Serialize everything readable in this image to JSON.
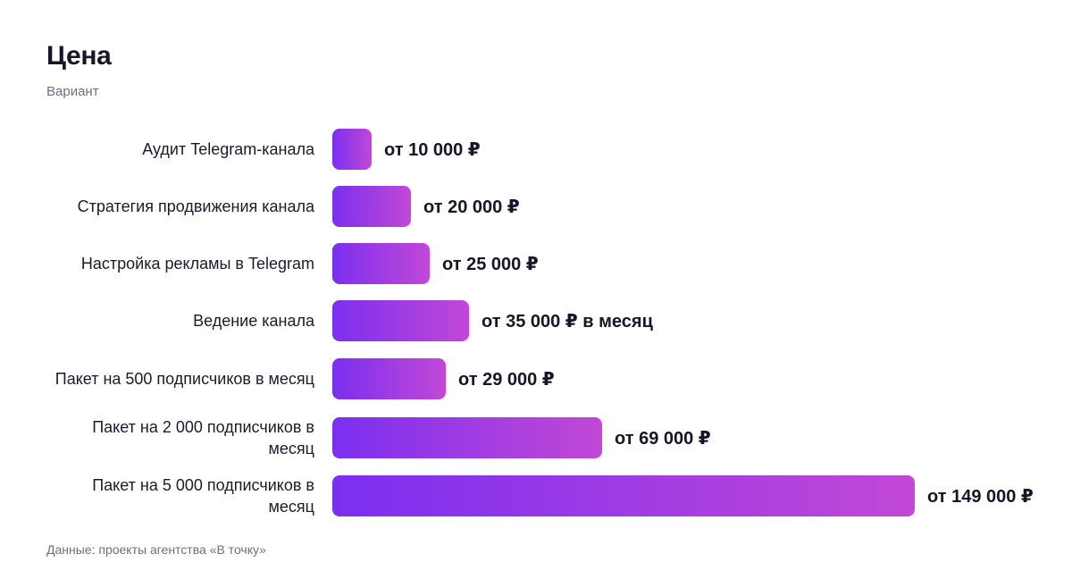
{
  "header": {
    "title": "Цена",
    "subtitle": "Вариант"
  },
  "footer": {
    "source": "Данные: проекты агентства «В точку»"
  },
  "colors": {
    "bar_start": "#7b2ff0",
    "bar_end": "#c248d6"
  },
  "chart_data": {
    "type": "bar",
    "orientation": "horizontal",
    "title": "Цена",
    "subtitle": "Вариант",
    "categories": [
      "Аудит Telegram-канала",
      "Стратегия продвижения канала",
      "Настройка рекламы в Telegram",
      "Ведение канала",
      "Пакет на 500 подписчиков в месяц",
      "Пакет на 2 000 подписчиков в месяц",
      "Пакет на 5 000 подписчиков в месяц"
    ],
    "values": [
      10000,
      20000,
      25000,
      35000,
      29000,
      69000,
      149000
    ],
    "data_labels": [
      "от 10 000 ₽",
      "от 20 000 ₽",
      "от 25 000 ₽",
      "от 35 000 ₽ в месяц",
      "от 29 000 ₽",
      "от 69 000 ₽",
      "от 149 000 ₽"
    ],
    "xlim": [
      0,
      149000
    ],
    "grid": false,
    "legend": "none"
  }
}
